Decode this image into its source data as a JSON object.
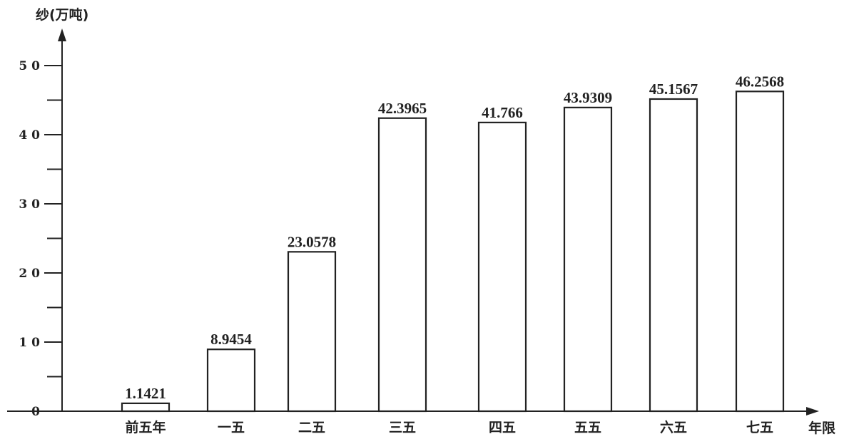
{
  "chart_data": {
    "type": "bar",
    "ylabel": "纱(万吨)",
    "xlabel": "年限",
    "ylim": [
      0,
      50
    ],
    "yticks": [
      0,
      10,
      20,
      30,
      40,
      50
    ],
    "ytick_labels": [
      "0",
      "1 0",
      "2 0",
      "3 0",
      "4 0",
      "5 0"
    ],
    "categories": [
      "前五年",
      "一五",
      "二五",
      "三五",
      "四五",
      "五五",
      "六五",
      "七五"
    ],
    "values": [
      1.1421,
      8.9454,
      23.0578,
      42.3965,
      41.766,
      43.9309,
      45.1567,
      46.2568
    ],
    "data_labels": [
      "1.1421",
      "8.9454",
      "23.0578",
      "42.3965",
      "41.766",
      "43.9309",
      "45.1567",
      "46.2568"
    ],
    "grid": false
  }
}
